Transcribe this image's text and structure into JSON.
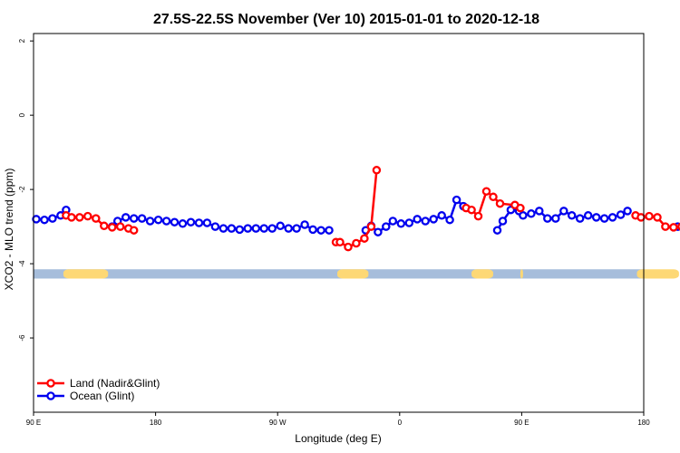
{
  "chart_data": {
    "type": "line",
    "title": "27.5S-22.5S November (Ver 10)   2015-01-01 to 2020-12-18",
    "xlabel": "Longitude (deg E)",
    "ylabel": "XCO2 - MLO trend (ppm)",
    "x_axis": {
      "range_deg_east": [
        90,
        450
      ],
      "ticks": [
        {
          "value": 90,
          "label": "90 E"
        },
        {
          "value": 180,
          "label": "180"
        },
        {
          "value": 270,
          "label": "90 W"
        },
        {
          "value": 360,
          "label": "0"
        },
        {
          "value": 450,
          "label": "90 E"
        },
        {
          "value": 540,
          "label": "180"
        }
      ]
    },
    "y_axis": {
      "range": [
        -8,
        2.2
      ],
      "ticks": [
        {
          "value": 2,
          "label": "2"
        },
        {
          "value": 0,
          "label": "0"
        },
        {
          "value": -2,
          "label": "-2"
        },
        {
          "value": -4,
          "label": "-4"
        },
        {
          "value": -6,
          "label": "-6"
        }
      ]
    },
    "x_range_plotted": [
      90,
      540
    ],
    "grid": false,
    "legend": {
      "position": "bottom-left",
      "entries": [
        {
          "name": "Land (Nadir&Glint)",
          "color": "#ff0000"
        },
        {
          "name": "Ocean (Glint)",
          "color": "#0000ee"
        }
      ]
    },
    "series": [
      {
        "name": "Ocean (Glint)",
        "color": "#0000ee",
        "segments": [
          [
            [
              92,
              -2.8
            ],
            [
              98,
              -2.82
            ],
            [
              104,
              -2.78
            ],
            [
              110,
              -2.7
            ],
            [
              114,
              -2.55
            ]
          ],
          [
            [
              148,
              -3.0
            ],
            [
              152,
              -2.85
            ],
            [
              158,
              -2.75
            ],
            [
              164,
              -2.78
            ],
            [
              170,
              -2.78
            ],
            [
              176,
              -2.85
            ],
            [
              182,
              -2.82
            ],
            [
              188,
              -2.85
            ],
            [
              194,
              -2.88
            ],
            [
              200,
              -2.92
            ],
            [
              206,
              -2.88
            ],
            [
              212,
              -2.9
            ],
            [
              218,
              -2.9
            ],
            [
              224,
              -3.0
            ],
            [
              230,
              -3.05
            ],
            [
              236,
              -3.05
            ],
            [
              242,
              -3.08
            ],
            [
              248,
              -3.05
            ],
            [
              254,
              -3.05
            ],
            [
              260,
              -3.05
            ],
            [
              266,
              -3.05
            ],
            [
              272,
              -2.98
            ],
            [
              278,
              -3.05
            ],
            [
              284,
              -3.05
            ],
            [
              290,
              -2.95
            ],
            [
              296,
              -3.08
            ],
            [
              302,
              -3.1
            ],
            [
              308,
              -3.1
            ]
          ],
          [
            [
              335,
              -3.1
            ],
            [
              339,
              -2.98
            ],
            [
              344,
              -3.15
            ],
            [
              350,
              -3.0
            ],
            [
              355,
              -2.85
            ],
            [
              361,
              -2.92
            ],
            [
              367,
              -2.9
            ],
            [
              373,
              -2.8
            ],
            [
              379,
              -2.85
            ],
            [
              385,
              -2.8
            ],
            [
              391,
              -2.7
            ],
            [
              397,
              -2.82
            ],
            [
              402,
              -2.28
            ],
            [
              407,
              -2.45
            ]
          ],
          [
            [
              432,
              -3.1
            ],
            [
              436,
              -2.85
            ],
            [
              442,
              -2.55
            ],
            [
              448,
              -2.58
            ],
            [
              451,
              -2.7
            ],
            [
              457,
              -2.65
            ],
            [
              463,
              -2.58
            ],
            [
              469,
              -2.78
            ],
            [
              475,
              -2.78
            ],
            [
              481,
              -2.58
            ],
            [
              487,
              -2.7
            ],
            [
              493,
              -2.78
            ],
            [
              499,
              -2.7
            ],
            [
              505,
              -2.75
            ],
            [
              511,
              -2.78
            ],
            [
              517,
              -2.75
            ],
            [
              523,
              -2.68
            ],
            [
              528,
              -2.58
            ]
          ],
          [
            [
              565,
              -3.0
            ],
            [
              570,
              -2.85
            ],
            [
              576,
              -2.75
            ],
            [
              582,
              -2.78
            ],
            [
              588,
              -2.78
            ],
            [
              594,
              -2.85
            ]
          ]
        ]
      },
      {
        "name": "Land (Nadir&Glint)",
        "color": "#ff0000",
        "segments": [
          [
            [
              114,
              -2.7
            ],
            [
              118,
              -2.75
            ],
            [
              124,
              -2.75
            ],
            [
              130,
              -2.72
            ],
            [
              136,
              -2.78
            ],
            [
              142,
              -2.98
            ],
            [
              148,
              -3.02
            ],
            [
              154,
              -3.0
            ],
            [
              160,
              -3.05
            ],
            [
              164,
              -3.1
            ]
          ],
          [
            [
              313,
              -3.42
            ],
            [
              316,
              -3.42
            ],
            [
              322,
              -3.55
            ],
            [
              328,
              -3.45
            ],
            [
              334,
              -3.32
            ],
            [
              339,
              -3.0
            ],
            [
              343,
              -1.48
            ]
          ],
          [
            [
              409,
              -2.5
            ],
            [
              413,
              -2.55
            ],
            [
              418,
              -2.72
            ],
            [
              424,
              -2.05
            ],
            [
              429,
              -2.2
            ],
            [
              434,
              -2.38
            ],
            [
              445,
              -2.42
            ],
            [
              449,
              -2.5
            ]
          ],
          [
            [
              534,
              -2.7
            ],
            [
              538,
              -2.75
            ],
            [
              544,
              -2.72
            ],
            [
              550,
              -2.75
            ],
            [
              556,
              -3.0
            ],
            [
              562,
              -3.02
            ],
            [
              568,
              -3.0
            ],
            [
              574,
              -3.05
            ],
            [
              580,
              -3.1
            ]
          ]
        ]
      }
    ],
    "surface_strip": {
      "y_top": -4.15,
      "y_bottom": -4.4,
      "ocean_color": "#a6bddb",
      "land_color": "#fdd875",
      "land_ranges": [
        [
          112,
          145
        ],
        [
          314,
          337
        ],
        [
          413,
          429
        ],
        [
          449,
          451
        ],
        [
          535,
          566
        ]
      ]
    }
  }
}
